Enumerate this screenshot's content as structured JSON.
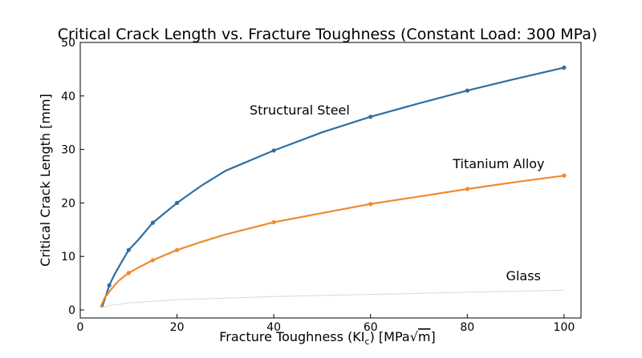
{
  "chart_data": {
    "type": "line",
    "title": "Critical Crack Length vs. Fracture Toughness (Constant Load: 300 MPa)",
    "xlabel": "Fracture Toughness (KI",
    "xlabel_sub": "c",
    "xlabel_unit_prefix": ") [MPa",
    "xlabel_sqrt": "√",
    "xlabel_unit_m": "m",
    "xlabel_close": "]",
    "ylabel": "Critical Crack Length [mm]",
    "xlim": [
      0,
      103.5
    ],
    "ylim": [
      -1.5,
      50
    ],
    "xticks": [
      0,
      20,
      40,
      60,
      80,
      100
    ],
    "yticks": [
      0,
      10,
      20,
      30,
      40,
      50
    ],
    "grid": false,
    "series": [
      {
        "name": "Structural Steel",
        "color": "#2e6fa3",
        "x": [
          4.5,
          5,
          6,
          7,
          8,
          10,
          12,
          15,
          20,
          25,
          30,
          40,
          50,
          60,
          70,
          80,
          90,
          100
        ],
        "y": [
          0.5,
          1.8,
          4.6,
          6.5,
          8.1,
          11.2,
          13.1,
          16.3,
          20.0,
          23.2,
          26.0,
          29.8,
          33.2,
          36.1,
          38.6,
          41.0,
          43.2,
          45.3
        ],
        "marker_x": [
          6,
          10,
          15,
          20,
          40,
          60,
          80,
          100
        ],
        "marker_y": [
          4.6,
          11.2,
          16.3,
          20.0,
          29.8,
          36.1,
          41.0,
          45.3
        ]
      },
      {
        "name": "Titanium Alloy",
        "color": "#ef8a2e",
        "x": [
          4.2,
          5,
          6,
          7,
          8,
          10,
          12,
          15,
          20,
          25,
          30,
          40,
          50,
          60,
          70,
          80,
          90,
          100
        ],
        "y": [
          0.5,
          2.2,
          3.4,
          4.5,
          5.5,
          6.9,
          7.9,
          9.3,
          11.2,
          12.7,
          14.1,
          16.4,
          18.1,
          19.8,
          21.2,
          22.6,
          23.9,
          25.1
        ],
        "marker_x": [
          10,
          15,
          20,
          40,
          60,
          80,
          100
        ],
        "marker_y": [
          6.9,
          9.3,
          11.2,
          16.4,
          19.8,
          22.6,
          25.1
        ]
      },
      {
        "name": "Glass",
        "color": "#d9d9d9",
        "x": [
          4.3,
          6,
          10,
          15,
          20,
          30,
          40,
          50,
          60,
          70,
          80,
          90,
          100
        ],
        "y": [
          0.4,
          0.8,
          1.3,
          1.6,
          1.9,
          2.2,
          2.5,
          2.7,
          2.9,
          3.1,
          3.3,
          3.5,
          3.7
        ],
        "marker_x": [],
        "marker_y": []
      }
    ],
    "annotations": [
      {
        "series": 0,
        "text": "Structural Steel",
        "x": 35,
        "y": 36.5
      },
      {
        "series": 1,
        "text": "Titanium Alloy",
        "x": 77,
        "y": 26.5
      },
      {
        "series": 2,
        "text": "Glass",
        "x": 88,
        "y": 5.5
      }
    ]
  }
}
